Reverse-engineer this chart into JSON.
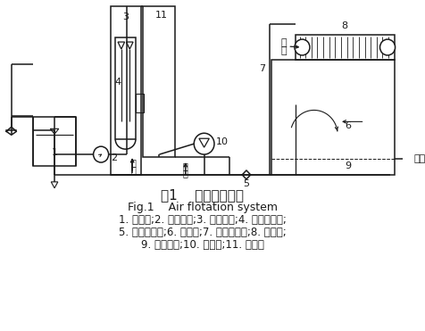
{
  "title_cn": "图1    气浮系统装置",
  "title_en": "Fig.1    Air flotation system",
  "caption_lines": [
    "1. 吸水井;2. 加压水泵;3. 射流器组;4. 压力溶气罐;",
    "5. 减压释放阀;6. 气浮池;7. 废水进水管;8. 刮渣机;",
    "9. 出水系统;10. 循环泵;11. 吸气阀"
  ],
  "bg_color": "#ffffff",
  "line_color": "#1a1a1a",
  "lw": 1.1
}
